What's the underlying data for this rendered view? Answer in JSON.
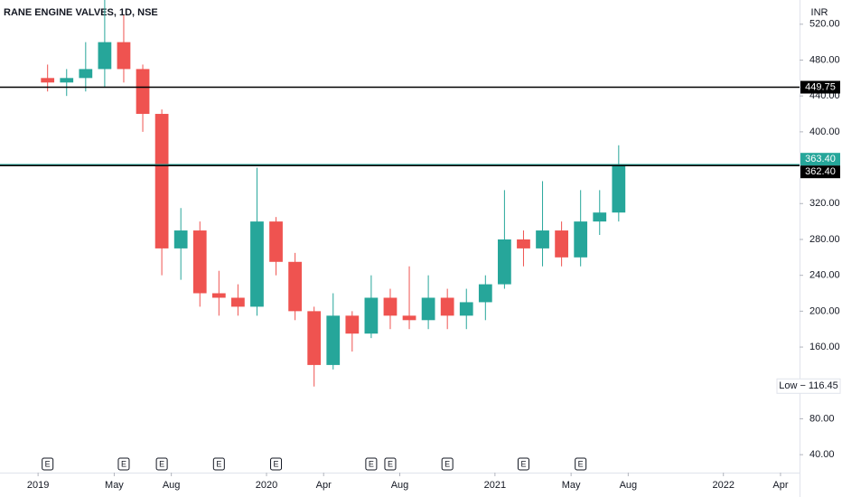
{
  "chart_data": {
    "type": "candlestick",
    "title": "RANE ENGINE VALVES, 1D, NSE",
    "currency": "INR",
    "x": [
      "2019-01",
      "2019-02",
      "2019-03",
      "2019-04",
      "2019-05",
      "2019-06",
      "2019-07",
      "2019-08",
      "2019-09",
      "2019-10",
      "2019-11",
      "2019-12",
      "2020-01",
      "2020-02",
      "2020-03",
      "2020-04",
      "2020-05",
      "2020-06",
      "2020-07",
      "2020-08",
      "2020-09",
      "2020-10",
      "2020-11",
      "2020-12",
      "2021-01",
      "2021-02",
      "2021-03",
      "2021-04",
      "2021-05",
      "2021-06",
      "2021-07"
    ],
    "open": [
      460,
      455,
      460,
      470,
      500,
      470,
      420,
      270,
      290,
      220,
      215,
      205,
      300,
      255,
      200,
      140,
      195,
      175,
      215,
      195,
      190,
      215,
      195,
      210,
      230,
      280,
      270,
      290,
      260,
      300,
      310
    ],
    "high": [
      475,
      470,
      500,
      560,
      530,
      475,
      425,
      315,
      300,
      245,
      230,
      360,
      305,
      265,
      205,
      220,
      200,
      240,
      225,
      250,
      240,
      225,
      225,
      240,
      335,
      290,
      345,
      300,
      335,
      335,
      385
    ],
    "low": [
      445,
      440,
      445,
      450,
      455,
      400,
      240,
      235,
      205,
      195,
      195,
      195,
      240,
      190,
      116,
      135,
      155,
      170,
      180,
      180,
      180,
      180,
      180,
      190,
      225,
      250,
      250,
      250,
      250,
      285,
      300
    ],
    "close": [
      455,
      460,
      470,
      500,
      470,
      420,
      270,
      290,
      220,
      215,
      205,
      300,
      255,
      200,
      140,
      195,
      175,
      215,
      195,
      190,
      215,
      195,
      210,
      230,
      280,
      270,
      290,
      260,
      300,
      310,
      363.4
    ],
    "up_color": "#26a69a",
    "down_color": "#ef5350",
    "xlim": [
      "2018-11",
      "2022-05"
    ],
    "xticks": [
      {
        "value": "2019-01",
        "label": "2019"
      },
      {
        "value": "2019-05",
        "label": "May"
      },
      {
        "value": "2019-08",
        "label": "Aug"
      },
      {
        "value": "2020-01",
        "label": "2020"
      },
      {
        "value": "2020-04",
        "label": "Apr"
      },
      {
        "value": "2020-08",
        "label": "Aug"
      },
      {
        "value": "2021-01",
        "label": "2021"
      },
      {
        "value": "2021-05",
        "label": "May"
      },
      {
        "value": "2021-08",
        "label": "Aug"
      },
      {
        "value": "2022-01",
        "label": "2022"
      },
      {
        "value": "2022-04",
        "label": "Apr"
      }
    ],
    "ylim": [
      20,
      547
    ],
    "yticks": [
      {
        "value": 40,
        "label": "40.00"
      },
      {
        "value": 80,
        "label": "80.00"
      },
      {
        "value": 160,
        "label": "160.00"
      },
      {
        "value": 200,
        "label": "200.00"
      },
      {
        "value": 240,
        "label": "240.00"
      },
      {
        "value": 280,
        "label": "280.00"
      },
      {
        "value": 320,
        "label": "320.00"
      },
      {
        "value": 400,
        "label": "400.00"
      },
      {
        "value": 440,
        "label": "440.00"
      },
      {
        "value": 480,
        "label": "480.00"
      },
      {
        "value": 520,
        "label": "520.00"
      }
    ],
    "hlines": [
      {
        "value": 449.75,
        "label": "449.75",
        "color": "#000000"
      },
      {
        "value": 363.4,
        "label": "363.40",
        "color": "#26a69a"
      },
      {
        "value": 362.4,
        "label": "362.40",
        "color": "#000000"
      }
    ],
    "low_label": "Low − 116.45",
    "low_value": 116.45,
    "earnings": {
      "label": "E",
      "x": [
        "2019-01",
        "2019-05",
        "2019-07",
        "2019-10",
        "2020-01",
        "2020-06",
        "2020-07",
        "2020-10",
        "2021-02",
        "2021-05"
      ]
    }
  }
}
